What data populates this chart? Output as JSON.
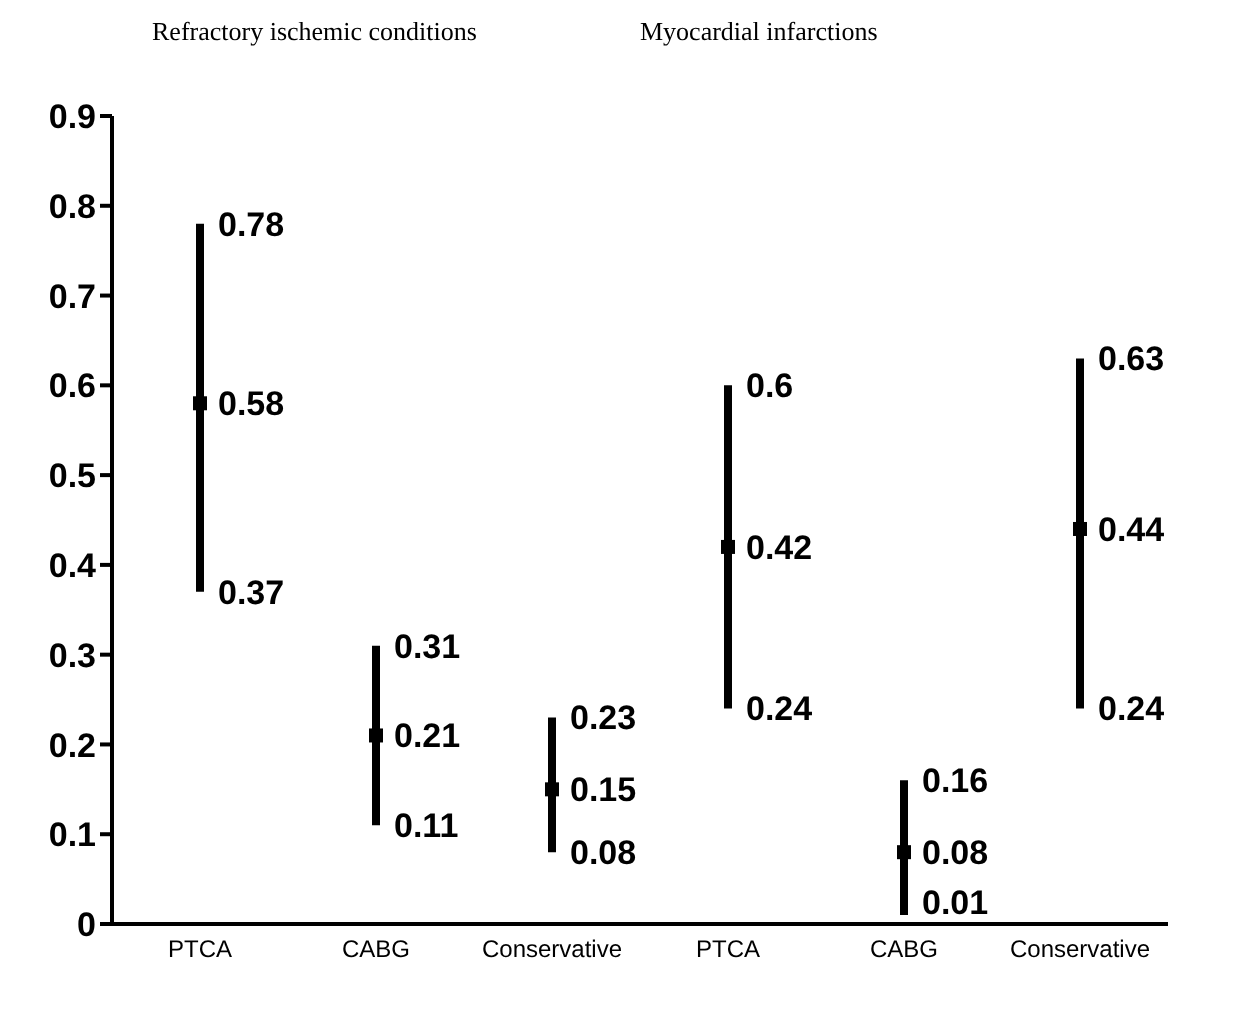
{
  "chart_data": [
    {
      "type": "scatter",
      "title": "Refractory ischemic conditions",
      "annotations": [
        {
          "text": "0.37",
          "x": "PTCA",
          "y": 0.37
        },
        {
          "text": "0.78",
          "x": "PTCA",
          "y": 0.78
        },
        {
          "text": "0.11",
          "x": "CABG",
          "y": 0.11
        },
        {
          "text": "0.31",
          "x": "CABG",
          "y": 0.31
        },
        {
          "text": "0.08",
          "x": "Conservative",
          "y": 0.08
        },
        {
          "text": "0.23",
          "x": "Conservative",
          "y": 0.23
        }
      ],
      "categories": [
        "PTCA",
        "CABG",
        "Conservative"
      ],
      "values": [
        0.58,
        0.21,
        0.15
      ],
      "errors": [
        [
          0.37,
          0.78
        ],
        [
          0.11,
          0.31
        ],
        [
          0.08,
          0.23
        ]
      ],
      "color": "#000000",
      "marker": "square",
      "data_labels": true,
      "ylim": [
        0,
        0.9
      ],
      "yticks": [
        0,
        0.1,
        0.2,
        0.3,
        0.4,
        0.5,
        0.6,
        0.7,
        0.8,
        0.9
      ],
      "grid": false
    },
    {
      "type": "scatter",
      "title": "Myocardial infarctions",
      "annotations": [
        {
          "text": "0.24",
          "x": "PTCA",
          "y": 0.24
        },
        {
          "text": "0.6",
          "x": "PTCA",
          "y": 0.6
        },
        {
          "text": "0.01",
          "x": "CABG",
          "y": 0.01
        },
        {
          "text": "0.16",
          "x": "CABG",
          "y": 0.16
        },
        {
          "text": "0.24",
          "x": "Conservative",
          "y": 0.24
        },
        {
          "text": "0.63",
          "x": "Conservative",
          "y": 0.63
        }
      ],
      "categories": [
        "PTCA",
        "CABG",
        "Conservative"
      ],
      "values": [
        0.42,
        0.08,
        0.44
      ],
      "errors": [
        [
          0.24,
          0.6
        ],
        [
          0.01,
          0.16
        ],
        [
          0.24,
          0.63
        ]
      ],
      "color": "#000000",
      "marker": "square",
      "data_labels": true,
      "ylim": [
        0,
        0.9
      ],
      "yticks": [
        0,
        0.1,
        0.2,
        0.3,
        0.4,
        0.5,
        0.6,
        0.7,
        0.8,
        0.9
      ],
      "grid": false,
      "tick_labels": "x"
    }
  ]
}
